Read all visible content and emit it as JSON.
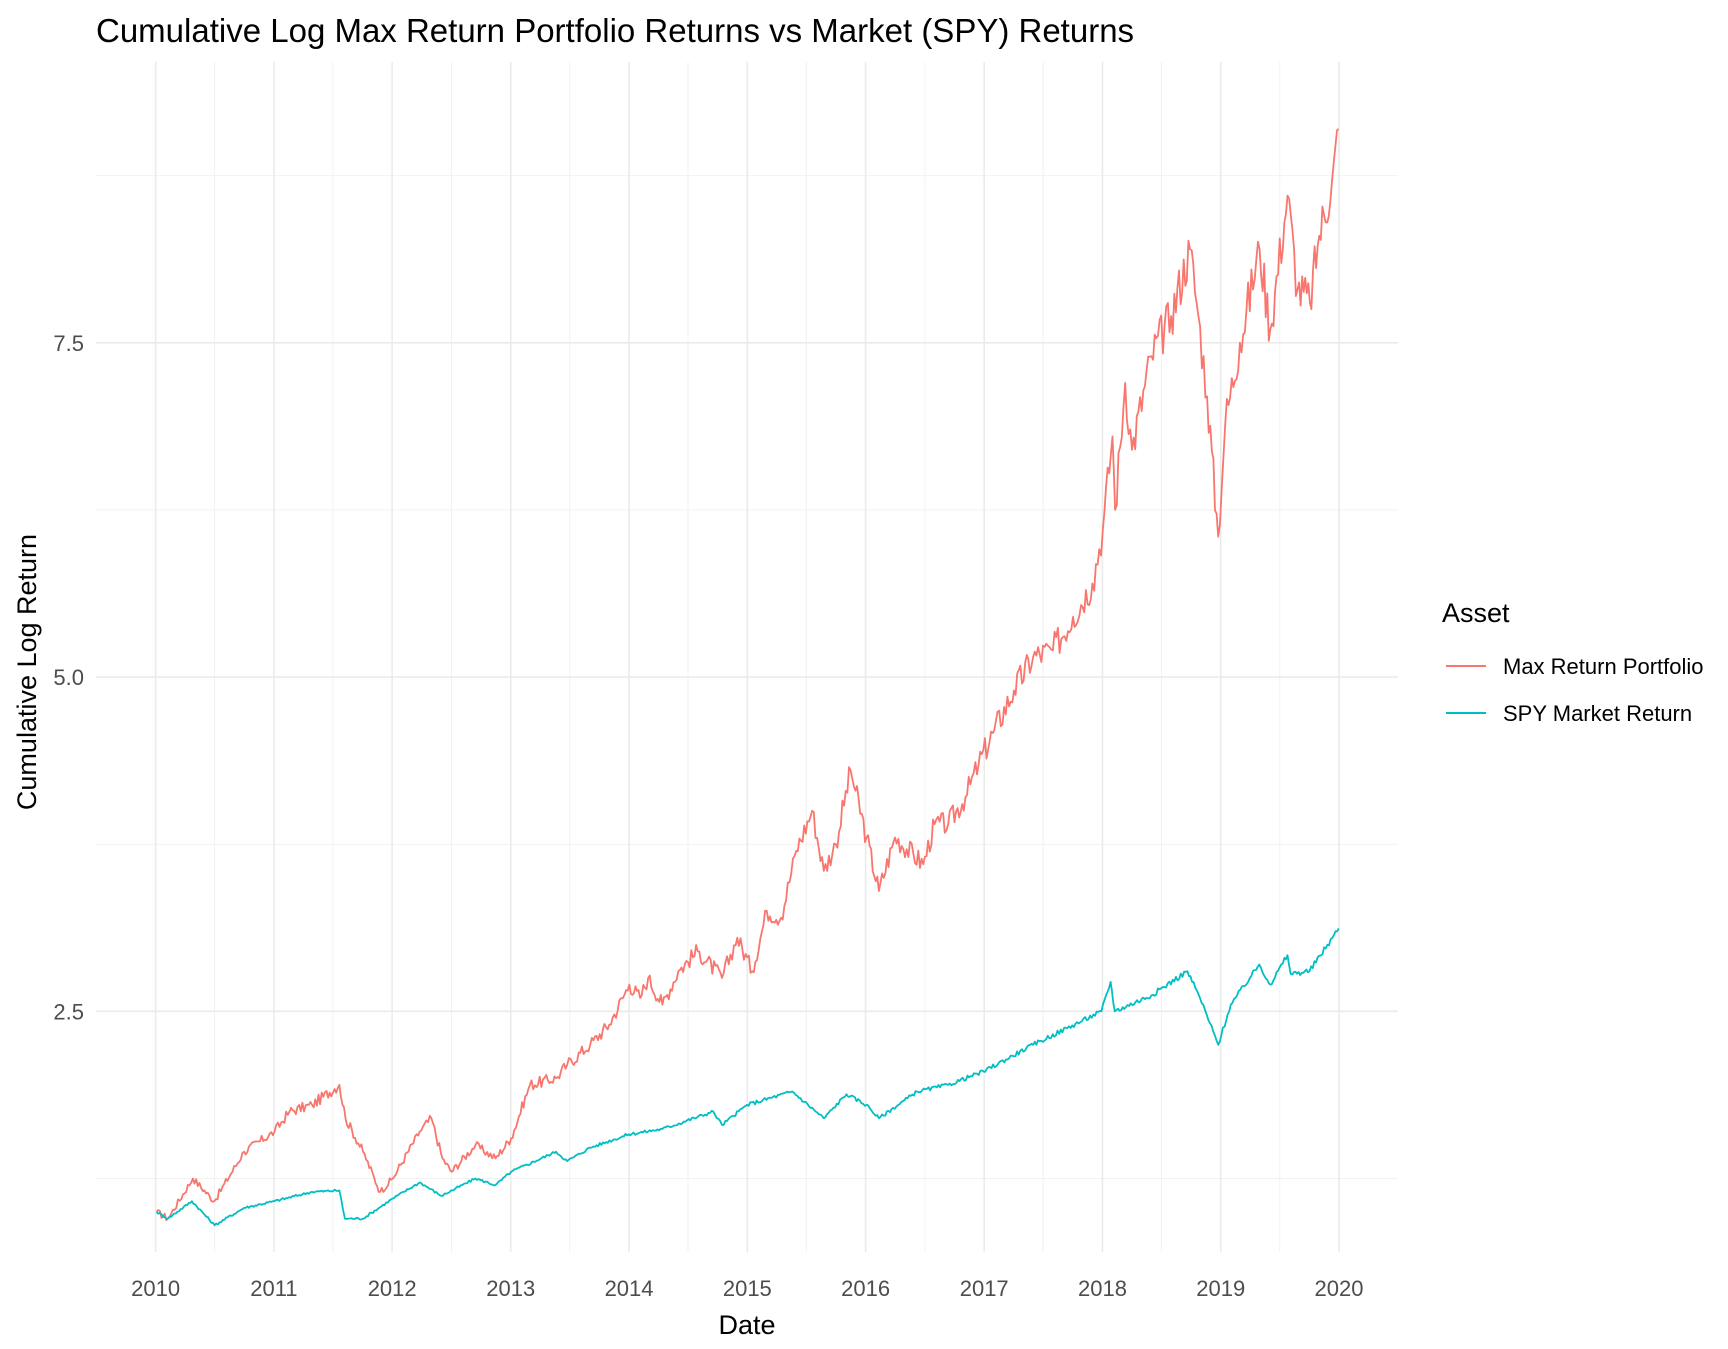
{
  "chart_data": {
    "type": "line",
    "title": "Cumulative Log Max Return Portfolio Returns vs Market (SPY) Returns",
    "xlabel": "Date",
    "ylabel": "Cumulative Log Return",
    "x_ticks": [
      "2010",
      "2011",
      "2012",
      "2013",
      "2014",
      "2015",
      "2016",
      "2017",
      "2018",
      "2019",
      "2020"
    ],
    "x_range": [
      "2009-07-01",
      "2020-07-01"
    ],
    "y_ticks": [
      "2.5",
      "5.0",
      "7.5"
    ],
    "y_tick_values": [
      2.5,
      5.0,
      7.5
    ],
    "y_range": [
      0.7,
      9.6
    ],
    "grid": true,
    "legend": {
      "title": "Asset",
      "position": "right"
    },
    "series": [
      {
        "name": "Max Return Portfolio",
        "color": "#F8766D",
        "points": [
          [
            "2010-01-04",
            1.0
          ],
          [
            "2010-02-08",
            0.95
          ],
          [
            "2010-04-26",
            1.25
          ],
          [
            "2010-07-01",
            1.08
          ],
          [
            "2010-10-01",
            1.45
          ],
          [
            "2011-01-03",
            1.6
          ],
          [
            "2011-02-18",
            1.75
          ],
          [
            "2011-04-29",
            1.8
          ],
          [
            "2011-07-22",
            1.95
          ],
          [
            "2011-08-10",
            1.7
          ],
          [
            "2011-10-03",
            1.45
          ],
          [
            "2011-11-25",
            1.15
          ],
          [
            "2012-01-03",
            1.25
          ],
          [
            "2012-03-26",
            1.6
          ],
          [
            "2012-05-01",
            1.7
          ],
          [
            "2012-06-04",
            1.4
          ],
          [
            "2012-07-02",
            1.3
          ],
          [
            "2012-09-14",
            1.5
          ],
          [
            "2012-11-15",
            1.4
          ],
          [
            "2013-01-02",
            1.55
          ],
          [
            "2013-03-01",
            1.95
          ],
          [
            "2013-05-21",
            2.0
          ],
          [
            "2013-06-24",
            2.1
          ],
          [
            "2013-09-03",
            2.25
          ],
          [
            "2013-11-01",
            2.4
          ],
          [
            "2014-01-02",
            2.7
          ],
          [
            "2014-02-04",
            2.6
          ],
          [
            "2014-03-01",
            2.75
          ],
          [
            "2014-04-14",
            2.55
          ],
          [
            "2014-06-02",
            2.8
          ],
          [
            "2014-08-01",
            2.95
          ],
          [
            "2014-10-15",
            2.75
          ],
          [
            "2014-12-01",
            3.05
          ],
          [
            "2015-01-16",
            2.8
          ],
          [
            "2015-03-02",
            3.25
          ],
          [
            "2015-04-15",
            3.2
          ],
          [
            "2015-06-01",
            3.7
          ],
          [
            "2015-07-20",
            4.0
          ],
          [
            "2015-08-25",
            3.55
          ],
          [
            "2015-10-01",
            3.75
          ],
          [
            "2015-11-16",
            4.3
          ],
          [
            "2016-01-04",
            3.8
          ],
          [
            "2016-02-11",
            3.4
          ],
          [
            "2016-04-01",
            3.8
          ],
          [
            "2016-06-27",
            3.6
          ],
          [
            "2016-08-01",
            3.9
          ],
          [
            "2016-09-12",
            3.9
          ],
          [
            "2016-11-04",
            4.1
          ],
          [
            "2016-12-15",
            4.35
          ],
          [
            "2017-02-01",
            4.6
          ],
          [
            "2017-04-03",
            4.9
          ],
          [
            "2017-06-01",
            5.15
          ],
          [
            "2017-08-01",
            5.2
          ],
          [
            "2017-10-02",
            5.45
          ],
          [
            "2017-12-01",
            5.7
          ],
          [
            "2018-01-02",
            6.1
          ],
          [
            "2018-02-01",
            6.8
          ],
          [
            "2018-02-09",
            6.25
          ],
          [
            "2018-03-12",
            7.2
          ],
          [
            "2018-04-02",
            6.7
          ],
          [
            "2018-06-01",
            7.4
          ],
          [
            "2018-08-01",
            7.7
          ],
          [
            "2018-09-28",
            8.2
          ],
          [
            "2018-10-24",
            7.7
          ],
          [
            "2018-11-20",
            7.1
          ],
          [
            "2018-12-24",
            6.05
          ],
          [
            "2019-01-15",
            6.9
          ],
          [
            "2019-03-01",
            7.5
          ],
          [
            "2019-05-01",
            8.2
          ],
          [
            "2019-06-03",
            7.6
          ],
          [
            "2019-07-26",
            8.6
          ],
          [
            "2019-08-26",
            7.9
          ],
          [
            "2019-10-03",
            7.8
          ],
          [
            "2019-11-01",
            8.3
          ],
          [
            "2019-12-10",
            8.7
          ],
          [
            "2019-12-31",
            9.1
          ]
        ]
      },
      {
        "name": "SPY Market Return",
        "color": "#00BFC4",
        "points": [
          [
            "2010-01-04",
            1.0
          ],
          [
            "2010-02-08",
            0.95
          ],
          [
            "2010-04-23",
            1.08
          ],
          [
            "2010-07-02",
            0.9
          ],
          [
            "2010-10-01",
            1.03
          ],
          [
            "2011-01-03",
            1.08
          ],
          [
            "2011-04-29",
            1.15
          ],
          [
            "2011-07-22",
            1.16
          ],
          [
            "2011-08-08",
            0.95
          ],
          [
            "2011-10-03",
            0.95
          ],
          [
            "2012-01-03",
            1.1
          ],
          [
            "2012-03-26",
            1.22
          ],
          [
            "2012-06-01",
            1.12
          ],
          [
            "2012-09-14",
            1.25
          ],
          [
            "2012-11-15",
            1.2
          ],
          [
            "2013-01-02",
            1.3
          ],
          [
            "2013-05-21",
            1.45
          ],
          [
            "2013-06-24",
            1.38
          ],
          [
            "2013-09-03",
            1.48
          ],
          [
            "2013-12-31",
            1.58
          ],
          [
            "2014-04-14",
            1.62
          ],
          [
            "2014-09-18",
            1.75
          ],
          [
            "2014-10-15",
            1.65
          ],
          [
            "2014-12-31",
            1.8
          ],
          [
            "2015-05-20",
            1.9
          ],
          [
            "2015-08-25",
            1.7
          ],
          [
            "2015-11-03",
            1.88
          ],
          [
            "2016-01-04",
            1.8
          ],
          [
            "2016-02-11",
            1.7
          ],
          [
            "2016-06-08",
            1.9
          ],
          [
            "2016-09-12",
            1.95
          ],
          [
            "2016-12-30",
            2.05
          ],
          [
            "2017-06-01",
            2.25
          ],
          [
            "2017-12-29",
            2.5
          ],
          [
            "2018-01-26",
            2.72
          ],
          [
            "2018-02-08",
            2.5
          ],
          [
            "2018-06-01",
            2.62
          ],
          [
            "2018-09-20",
            2.8
          ],
          [
            "2018-10-29",
            2.6
          ],
          [
            "2018-12-24",
            2.25
          ],
          [
            "2019-02-01",
            2.55
          ],
          [
            "2019-04-30",
            2.85
          ],
          [
            "2019-06-03",
            2.7
          ],
          [
            "2019-07-26",
            2.92
          ],
          [
            "2019-08-05",
            2.78
          ],
          [
            "2019-10-02",
            2.8
          ],
          [
            "2019-12-31",
            3.12
          ]
        ]
      }
    ]
  }
}
